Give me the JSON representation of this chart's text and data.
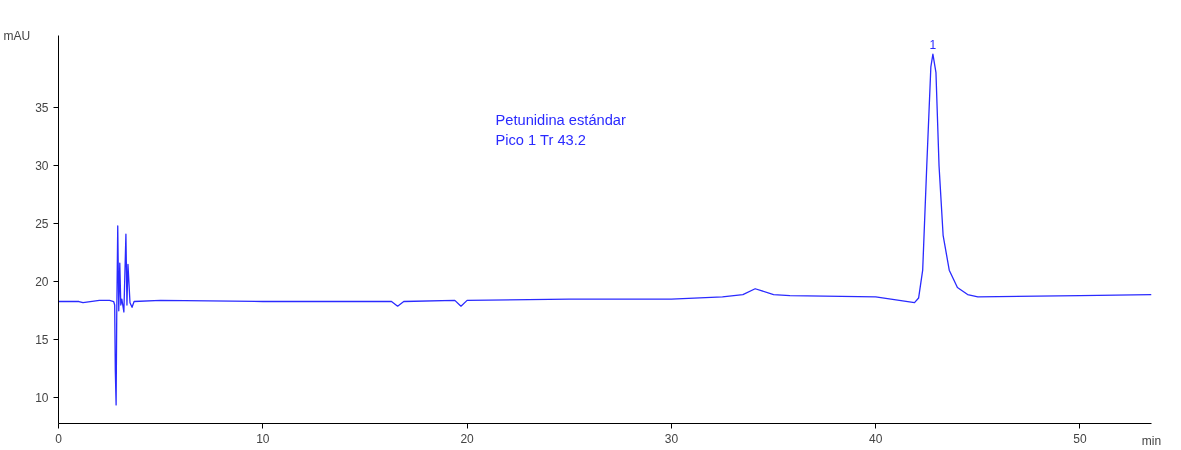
{
  "chart_data": {
    "type": "line",
    "xlabel": "min",
    "ylabel": "mAU",
    "x": [
      0,
      1.0,
      1.2,
      2.0,
      2.5,
      2.7,
      2.75,
      2.78,
      2.82,
      2.85,
      2.9,
      2.95,
      3.0,
      3.05,
      3.1,
      3.2,
      3.3,
      3.35,
      3.4,
      3.5,
      3.6,
      3.7,
      5,
      10,
      15,
      16.3,
      16.6,
      16.9,
      19.4,
      19.7,
      20.0,
      25,
      30,
      32.5,
      33.5,
      34.1,
      35.0,
      35.8,
      40,
      41.9,
      42.1,
      42.3,
      42.5,
      42.7,
      42.8,
      42.95,
      43.1,
      43.3,
      43.6,
      44.0,
      44.5,
      45,
      50,
      53.5
    ],
    "series": [
      {
        "color": "#2a2aff",
        "values": [
          18.3,
          18.3,
          18.2,
          18.4,
          18.4,
          18.3,
          18.0,
          12.4,
          9.4,
          17.0,
          24.8,
          17.5,
          21.6,
          18.0,
          18.5,
          17.4,
          24.1,
          18.0,
          21.5,
          18.2,
          17.8,
          18.3,
          18.4,
          18.3,
          18.3,
          18.3,
          17.9,
          18.3,
          18.4,
          17.9,
          18.4,
          18.5,
          18.5,
          18.7,
          18.9,
          19.4,
          18.9,
          18.8,
          18.7,
          18.2,
          18.6,
          21.0,
          30.0,
          38.5,
          39.6,
          38.0,
          30.0,
          24.0,
          21.0,
          19.5,
          18.9,
          18.7,
          18.8,
          18.9
        ]
      }
    ],
    "xlim": [
      0,
      53.5
    ],
    "ylim": [
      7.8,
      41.2
    ],
    "xticks": [
      0,
      10,
      20,
      30,
      40,
      50
    ],
    "yticks": [
      10,
      15,
      20,
      25,
      30,
      35
    ],
    "grid": false,
    "marker": "none",
    "line_style": "solid",
    "annotations": [
      "Petunidina estándar",
      "Pico 1  Tr 43.2",
      {
        "text": "1",
        "x": 42.8,
        "y": 39.6
      }
    ]
  }
}
